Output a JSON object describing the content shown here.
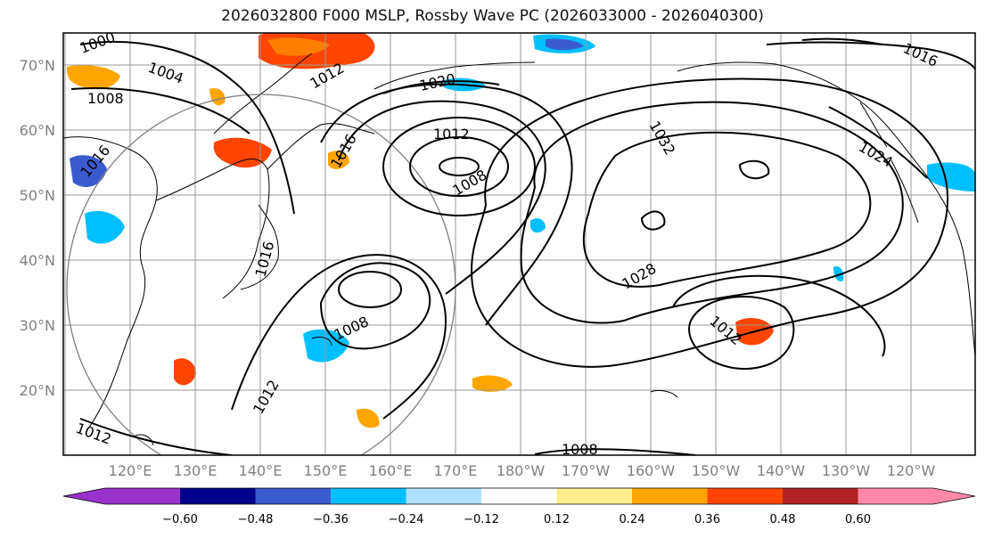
{
  "title": "2026032800 F000 MSLP, Rossby Wave PC (2026033000 - 2026040300)",
  "lat_labels": [
    "70°N",
    "60°N",
    "50°N",
    "40°N",
    "30°N",
    "20°N"
  ],
  "lon_labels": [
    "120°E",
    "130°E",
    "140°E",
    "150°E",
    "160°E",
    "170°E",
    "180°W",
    "170°W",
    "160°W",
    "150°W",
    "140°W",
    "130°W",
    "120°W"
  ],
  "colorbar": {
    "colors": [
      "#9932cc",
      "#00008b",
      "#3a5bd0",
      "#00bfff",
      "#b0e2ff",
      "#ffffff",
      "#ffec8b",
      "#ffa500",
      "#ff4500",
      "#b22222",
      "#ff88aa"
    ],
    "tick_labels": [
      "−0.60",
      "−0.48",
      "−0.36",
      "−0.24",
      "−0.12",
      "0.12",
      "0.24",
      "0.36",
      "0.48",
      "0.60"
    ]
  },
  "isobar_labels": [
    "1000",
    "1004",
    "1008",
    "1012",
    "1016",
    "1020",
    "1016",
    "1012",
    "1008",
    "1032",
    "1024",
    "1016",
    "1016",
    "1008",
    "1028",
    "1012",
    "1012",
    "1012",
    "1008"
  ],
  "field": "MSLP"
}
